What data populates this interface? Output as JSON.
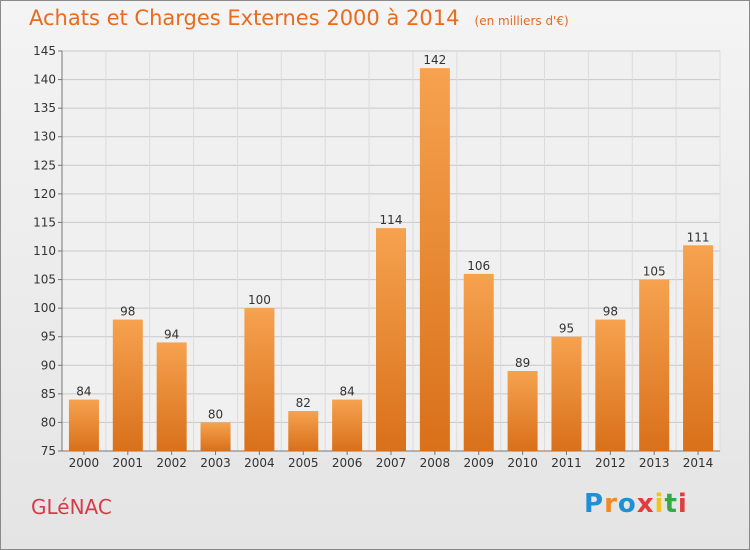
{
  "chart_data": {
    "type": "bar",
    "title": "Achats et Charges Externes 2000 à 2014",
    "subtitle": "(en milliers d'€)",
    "categories": [
      "2000",
      "2001",
      "2002",
      "2003",
      "2004",
      "2005",
      "2006",
      "2007",
      "2008",
      "2009",
      "2010",
      "2011",
      "2012",
      "2013",
      "2014"
    ],
    "values": [
      84,
      98,
      94,
      80,
      100,
      82,
      84,
      114,
      142,
      106,
      89,
      95,
      98,
      105,
      111
    ],
    "ylim": [
      75,
      145
    ],
    "yticks": [
      75,
      80,
      85,
      90,
      95,
      100,
      105,
      110,
      115,
      120,
      125,
      130,
      135,
      140,
      145
    ],
    "grid": true,
    "bar_color_top": "#f6a24f",
    "bar_color_bottom": "#d9701a",
    "xlabel": "",
    "ylabel": ""
  },
  "footer": {
    "commune": "GLéNAC",
    "brand_letters": [
      "P",
      "r",
      "o",
      "x",
      "i",
      "t",
      "i"
    ],
    "brand_colors": [
      "#1f8fd6",
      "#f28a1d",
      "#1f8fd6",
      "#e23c3c",
      "#f2c21d",
      "#33a845",
      "#e23c3c"
    ]
  },
  "colors": {
    "title": "#ea6a1e",
    "commune": "#d83a4a",
    "grid": "#c8c8c8",
    "axis_text": "#333333"
  }
}
